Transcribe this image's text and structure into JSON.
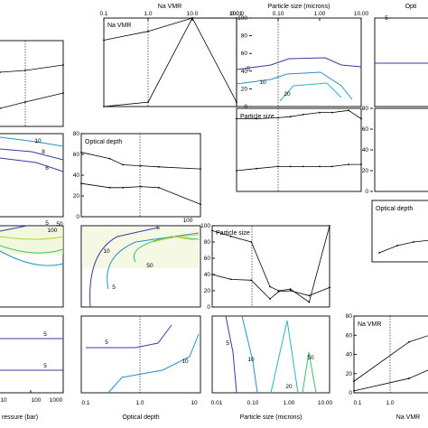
{
  "chart_data": [
    {
      "id": "p0_1",
      "type": "line",
      "title": "",
      "xlabel": "Na VMR",
      "ylabel": "",
      "xscale": "log",
      "xlim": [
        0.1,
        100
      ],
      "ylim": [
        0,
        100
      ],
      "xticks": [
        "0.1",
        "1.0",
        "10.0",
        "100.0"
      ],
      "yticks": [
        "0",
        "20",
        "40",
        "60",
        "80",
        "100"
      ],
      "ref_x": 1.0,
      "series": [
        {
          "x": [
            0.1,
            1.0,
            10.0,
            100.0
          ],
          "y": [
            75,
            85,
            100,
            100
          ]
        },
        {
          "x": [
            0.1,
            1.0,
            10.0,
            100.0
          ],
          "y": [
            0,
            5,
            100,
            5
          ]
        }
      ],
      "panel_label": "Na VMR"
    },
    {
      "id": "p0_2",
      "type": "line",
      "xlabel": "Particle size (microns)",
      "xscale": "log",
      "xlim": [
        0.01,
        10
      ],
      "xticks": [
        "0.01",
        "0.10",
        "1.00",
        "10.00"
      ],
      "yticks": [],
      "contour_labels": [
        "5",
        "10",
        "20"
      ]
    },
    {
      "id": "p0_3",
      "type": "line",
      "xlabel": "Opti",
      "contour_labels": [
        "5"
      ]
    },
    {
      "id": "p1_2",
      "type": "line",
      "xscale": "log",
      "xlim": [
        0.01,
        10
      ],
      "ylim": [
        0,
        80
      ],
      "ref_x": 0.1,
      "series": [
        {
          "x": [
            0.01,
            0.03,
            0.1,
            0.2,
            0.4,
            1,
            2,
            5,
            10
          ],
          "y": [
            70,
            70,
            71,
            72,
            74,
            76,
            76,
            78,
            70
          ]
        },
        {
          "x": [
            0.01,
            0.03,
            0.1,
            0.2,
            0.4,
            1,
            2,
            5,
            10
          ],
          "y": [
            20,
            22,
            24,
            24,
            24,
            24,
            24,
            26,
            26
          ]
        }
      ],
      "panel_label": "Particle size",
      "yticks": [
        "0",
        "20",
        "40",
        "60",
        "80"
      ]
    },
    {
      "id": "p1_0",
      "type": "contour",
      "contour_labels": [
        "10",
        "8",
        "6"
      ]
    },
    {
      "id": "p1_1",
      "type": "line",
      "xscale": "log",
      "ylim": [
        0,
        80
      ],
      "ref_x": 1.0,
      "series": [
        {
          "x": [
            0.1,
            0.3,
            0.5,
            1,
            2,
            10
          ],
          "y": [
            62,
            56,
            50,
            49,
            48,
            46
          ]
        },
        {
          "x": [
            0.1,
            0.3,
            0.5,
            1,
            2,
            10
          ],
          "y": [
            32,
            28,
            28,
            29,
            28,
            12
          ]
        }
      ],
      "panel_label": "Optical depth",
      "yticks": [
        "0",
        "20",
        "40",
        "60",
        "80"
      ]
    },
    {
      "id": "p1_3",
      "type": "line",
      "panel_label": "Optical depth"
    },
    {
      "id": "p2_0",
      "type": "contour",
      "contour_labels": [
        "5",
        "100",
        "50"
      ]
    },
    {
      "id": "p2_1",
      "type": "contour",
      "contour_labels": [
        "5",
        "100",
        "10",
        "50",
        "5"
      ]
    },
    {
      "id": "p2_2",
      "type": "line",
      "xscale": "log",
      "xlim": [
        0.01,
        10
      ],
      "ylim": [
        0,
        100
      ],
      "ref_x": 0.1,
      "series": [
        {
          "x": [
            0.01,
            0.03,
            0.1,
            0.3,
            0.5,
            1,
            3,
            10
          ],
          "y": [
            94,
            87,
            80,
            25,
            20,
            22,
            6,
            100
          ]
        },
        {
          "x": [
            0.01,
            0.03,
            0.1,
            0.3,
            0.5,
            1,
            3,
            10
          ],
          "y": [
            40,
            34,
            33,
            10,
            19,
            20,
            14,
            24
          ]
        }
      ],
      "panel_label": "Particle size",
      "yticks": [
        "0",
        "20",
        "40",
        "60",
        "80",
        "100"
      ]
    },
    {
      "id": "p3_0",
      "type": "contour",
      "xlabel": "ressure (bar)",
      "xticks": [
        "10",
        "100",
        "1000"
      ],
      "contour_labels": [
        "5",
        "5"
      ]
    },
    {
      "id": "p3_1",
      "type": "contour",
      "xlabel": "Optical depth",
      "xticks": [
        "0.1",
        "1.0",
        "10"
      ],
      "contour_labels": [
        "5",
        "10"
      ]
    },
    {
      "id": "p3_2",
      "type": "contour",
      "xlabel": "Particle size (microns)",
      "xticks": [
        "0.01",
        "0.10",
        "1.00",
        "10.00"
      ],
      "contour_labels": [
        "5",
        "10",
        "20",
        "50"
      ]
    },
    {
      "id": "p3_3",
      "type": "line",
      "xscale": "log",
      "ylim": [
        0,
        80
      ],
      "ref_x": 1.0,
      "series": [
        {
          "x": [
            0.1,
            1,
            10
          ],
          "y": [
            12,
            53,
            72
          ]
        },
        {
          "x": [
            0.1,
            1,
            10
          ],
          "y": [
            2,
            15,
            40
          ]
        }
      ],
      "panel_label": "Na VMR",
      "xlabel": "Na VMR",
      "xticks": [
        "0.1",
        "1.0"
      ],
      "yticks": [
        "0",
        "20",
        "40",
        "60",
        "80"
      ]
    }
  ],
  "colors": {
    "c5": "#3a3aa6",
    "c10": "#2c8fc4",
    "c20": "#27b7b7",
    "c50": "#3cc06e",
    "c100": "#b6cf3a",
    "cA": "#e8d23a",
    "black": "#000000"
  }
}
